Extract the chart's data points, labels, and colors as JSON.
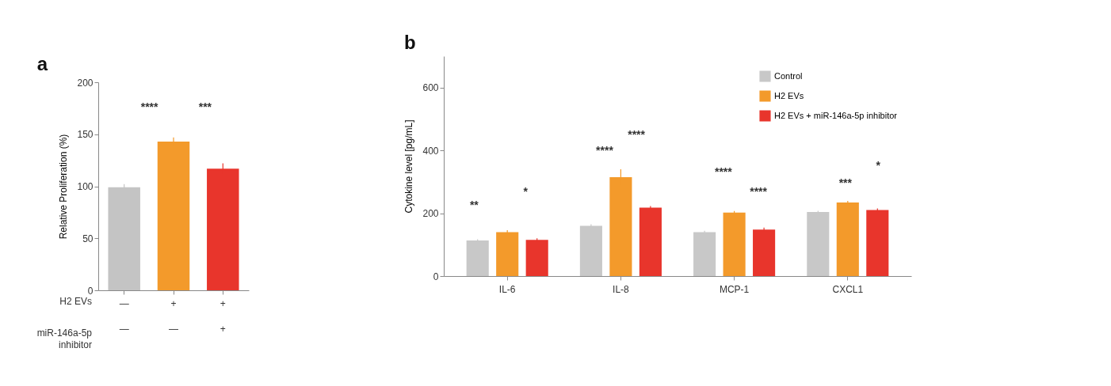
{
  "chart_data": [
    {
      "type": "bar",
      "title": "a",
      "ylabel": "Relative Proliferation (%)",
      "categories": [
        "—\n—",
        "+\n—",
        "+\n+"
      ],
      "values": [
        99,
        143,
        117
      ],
      "errors": [
        3,
        4,
        5
      ],
      "colors": [
        "#c4c4c4",
        "#f39a2b",
        "#e8352c"
      ],
      "ylim": [
        0,
        200
      ],
      "yticks": [
        0,
        50,
        100,
        150,
        200
      ],
      "annotations": [
        "****",
        "***",
        "H2 EVs",
        "miR-146a-5p inhibitor"
      ]
    },
    {
      "type": "bar",
      "title": "b",
      "ylabel": "Cytokine level [pg/mL]",
      "categories": [
        "IL-6",
        "IL-8",
        "MCP-1",
        "CXCL1"
      ],
      "series": [
        {
          "name": "Control",
          "color": "#c8c8c8",
          "values": [
            113,
            160,
            140,
            204
          ],
          "errors": [
            4,
            5,
            4,
            4
          ]
        },
        {
          "name": "H2 EVs",
          "color": "#f39a2b",
          "values": [
            140,
            315,
            202,
            234
          ],
          "errors": [
            6,
            25,
            5,
            5
          ]
        },
        {
          "name": "H2 EVs + miR-146a-5p inhibitor",
          "color": "#e8352c",
          "values": [
            115,
            218,
            148,
            210
          ],
          "errors": [
            5,
            5,
            6,
            5
          ]
        }
      ],
      "ylim": [
        0,
        700
      ],
      "yticks": [
        0,
        200,
        400,
        600
      ],
      "legend": "top right",
      "annotations": [
        "**",
        "*",
        "****",
        "****",
        "****",
        "****",
        "***",
        "*"
      ]
    }
  ]
}
